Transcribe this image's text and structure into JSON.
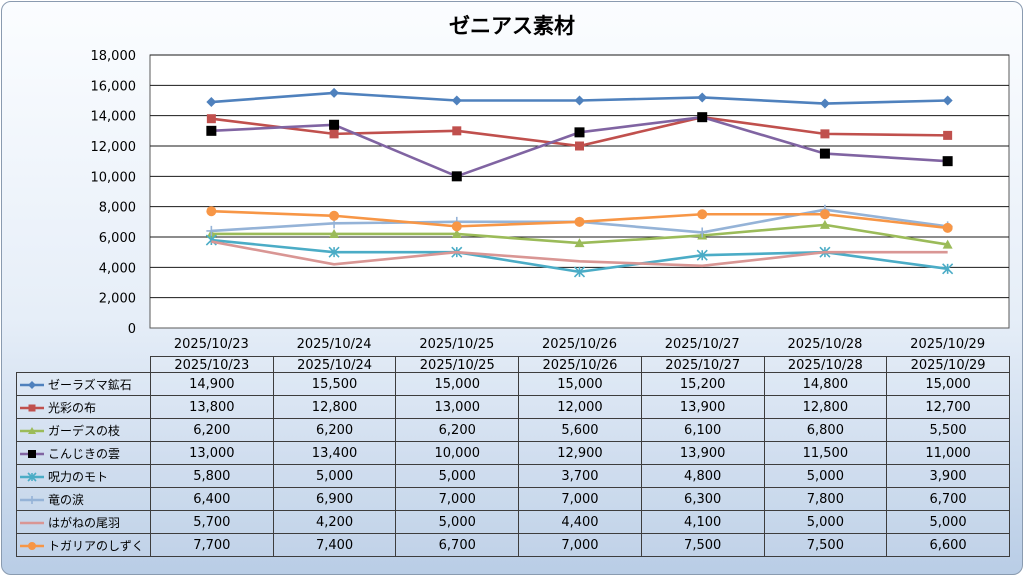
{
  "chart_data": {
    "type": "line",
    "title": "ゼニアス素材",
    "categories": [
      "2025/10/23",
      "2025/10/24",
      "2025/10/25",
      "2025/10/26",
      "2025/10/27",
      "2025/10/28",
      "2025/10/29"
    ],
    "ylim": [
      0,
      18000
    ],
    "yticks": [
      0,
      2000,
      4000,
      6000,
      8000,
      10000,
      12000,
      14000,
      16000,
      18000
    ],
    "ytick_labels": [
      "0",
      "2,000",
      "4,000",
      "6,000",
      "8,000",
      "10,000",
      "12,000",
      "14,000",
      "16,000",
      "18,000"
    ],
    "grid": true,
    "legend": "data-table-below",
    "series": [
      {
        "name": "ゼーラズマ鉱石",
        "color": "#4f81bd",
        "marker": "diamond",
        "values": [
          14900,
          15500,
          15000,
          15000,
          15200,
          14800,
          15000
        ],
        "labels": [
          "14,900",
          "15,500",
          "15,000",
          "15,000",
          "15,200",
          "14,800",
          "15,000"
        ]
      },
      {
        "name": "光彩の布",
        "color": "#c0504d",
        "marker": "square",
        "values": [
          13800,
          12800,
          13000,
          12000,
          13900,
          12800,
          12700
        ],
        "labels": [
          "13,800",
          "12,800",
          "13,000",
          "12,000",
          "13,900",
          "12,800",
          "12,700"
        ]
      },
      {
        "name": "ガーデスの枝",
        "color": "#9bbb59",
        "marker": "triangle",
        "values": [
          6200,
          6200,
          6200,
          5600,
          6100,
          6800,
          5500
        ],
        "labels": [
          "6,200",
          "6,200",
          "6,200",
          "5,600",
          "6,100",
          "6,800",
          "5,500"
        ]
      },
      {
        "name": "こんじきの雲",
        "color": "#8064a2",
        "marker": "black-square",
        "values": [
          13000,
          13400,
          10000,
          12900,
          13900,
          11500,
          11000
        ],
        "labels": [
          "13,000",
          "13,400",
          "10,000",
          "12,900",
          "13,900",
          "11,500",
          "11,000"
        ]
      },
      {
        "name": "呪力のモト",
        "color": "#4bacc6",
        "marker": "asterisk",
        "values": [
          5800,
          5000,
          5000,
          3700,
          4800,
          5000,
          3900
        ],
        "labels": [
          "5,800",
          "5,000",
          "5,000",
          "3,700",
          "4,800",
          "5,000",
          "3,900"
        ]
      },
      {
        "name": "竜の涙",
        "color": "#95b3d7",
        "marker": "plus",
        "values": [
          6400,
          6900,
          7000,
          7000,
          6300,
          7800,
          6700
        ],
        "labels": [
          "6,400",
          "6,900",
          "7,000",
          "7,000",
          "6,300",
          "7,800",
          "6,700"
        ]
      },
      {
        "name": "はがねの尾羽",
        "color": "#d99694",
        "marker": "none",
        "values": [
          5700,
          4200,
          5000,
          4400,
          4100,
          5000,
          5000
        ],
        "labels": [
          "5,700",
          "4,200",
          "5,000",
          "4,400",
          "4,100",
          "5,000",
          "5,000"
        ]
      },
      {
        "name": "トガリアのしずく",
        "color": "#f79646",
        "marker": "circle",
        "values": [
          7700,
          7400,
          6700,
          7000,
          7500,
          7500,
          6600
        ],
        "labels": [
          "7,700",
          "7,400",
          "6,700",
          "7,000",
          "7,500",
          "7,500",
          "6,600"
        ]
      }
    ]
  }
}
